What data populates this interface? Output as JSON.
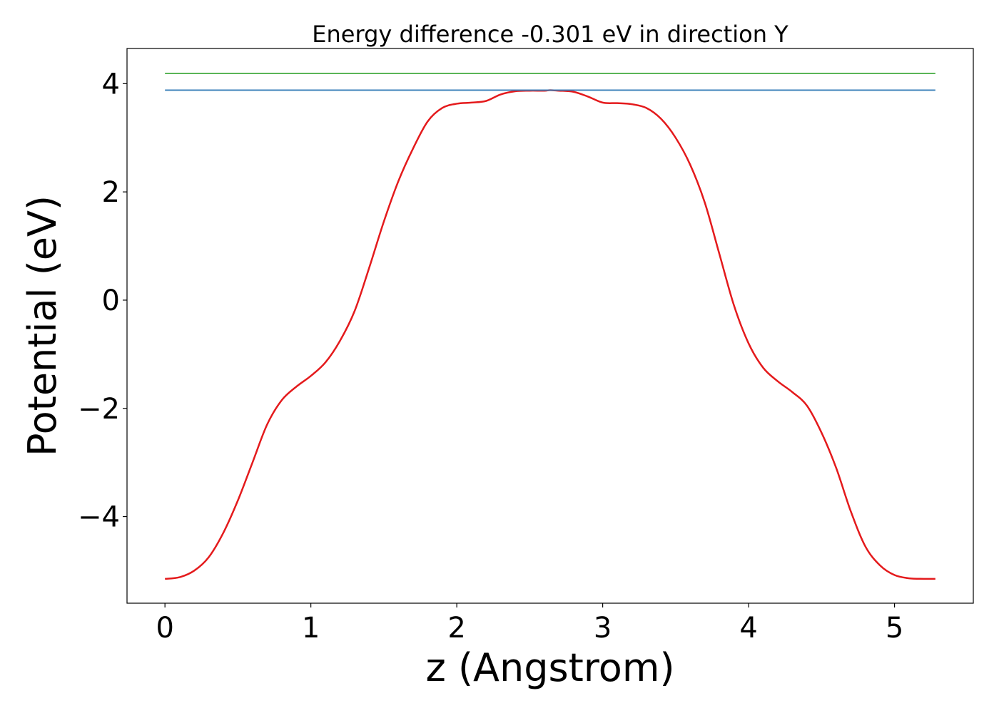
{
  "chart_data": {
    "type": "line",
    "title": "Energy difference -0.301 eV in direction Y",
    "xlabel": "z (Angstrom)",
    "ylabel": "Potential (eV)",
    "xlim": [
      -0.26,
      5.54
    ],
    "ylim": [
      -5.6,
      4.65
    ],
    "xticks": [
      {
        "value": 0,
        "label": "0"
      },
      {
        "value": 1,
        "label": "1"
      },
      {
        "value": 2,
        "label": "2"
      },
      {
        "value": 3,
        "label": "3"
      },
      {
        "value": 4,
        "label": "4"
      },
      {
        "value": 5,
        "label": "5"
      }
    ],
    "yticks": [
      {
        "value": -4,
        "label": "−4"
      },
      {
        "value": -2,
        "label": "−2"
      },
      {
        "value": 0,
        "label": "0"
      },
      {
        "value": 2,
        "label": "2"
      },
      {
        "value": 4,
        "label": "4"
      }
    ],
    "grid": false,
    "series": [
      {
        "color": "#e41a1c",
        "x": [
          0.0,
          0.1,
          0.2,
          0.3,
          0.4,
          0.5,
          0.6,
          0.7,
          0.8,
          0.9,
          1.0,
          1.1,
          1.2,
          1.3,
          1.4,
          1.5,
          1.6,
          1.7,
          1.8,
          1.9,
          2.0,
          2.1,
          2.2,
          2.3,
          2.4,
          2.5,
          2.6,
          2.64,
          2.7,
          2.8,
          2.9,
          3.0,
          3.1,
          3.2,
          3.3,
          3.4,
          3.5,
          3.6,
          3.7,
          3.8,
          3.9,
          4.0,
          4.1,
          4.2,
          4.3,
          4.4,
          4.5,
          4.6,
          4.7,
          4.8,
          4.9,
          5.0,
          5.1,
          5.2,
          5.28
        ],
        "y": [
          -5.15,
          -5.12,
          -5.0,
          -4.75,
          -4.3,
          -3.7,
          -3.0,
          -2.3,
          -1.85,
          -1.6,
          -1.4,
          -1.15,
          -0.75,
          -0.2,
          0.6,
          1.45,
          2.2,
          2.8,
          3.3,
          3.55,
          3.63,
          3.65,
          3.68,
          3.8,
          3.86,
          3.87,
          3.87,
          3.88,
          3.87,
          3.85,
          3.76,
          3.65,
          3.64,
          3.62,
          3.55,
          3.35,
          3.0,
          2.5,
          1.8,
          0.85,
          -0.1,
          -0.8,
          -1.25,
          -1.5,
          -1.7,
          -1.95,
          -2.45,
          -3.1,
          -3.9,
          -4.55,
          -4.9,
          -5.08,
          -5.14,
          -5.15,
          -5.15
        ]
      },
      {
        "color": "#377eb8",
        "x": [
          0.0,
          5.28
        ],
        "y": [
          3.88,
          3.88
        ]
      },
      {
        "color": "#4daf4a",
        "x": [
          0.0,
          5.28
        ],
        "y": [
          4.19,
          4.19
        ]
      }
    ]
  }
}
